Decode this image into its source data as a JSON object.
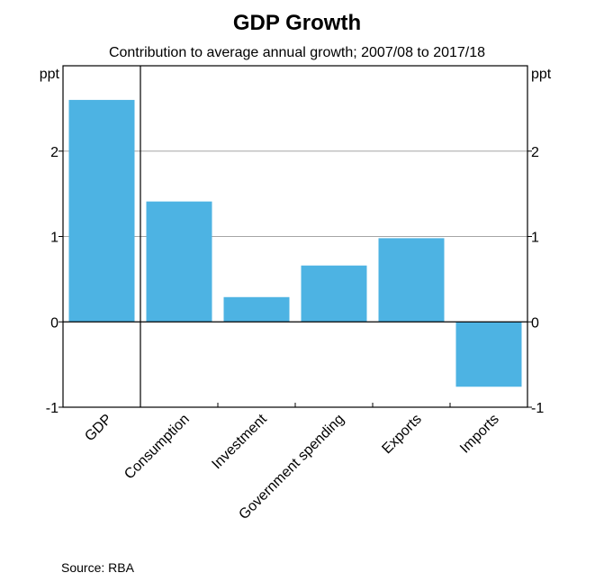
{
  "chart_data": {
    "type": "bar",
    "title": "GDP Growth",
    "subtitle": "Contribution to average annual growth; 2007/08 to 2017/18",
    "xlabel": "",
    "ylabel": "ppt",
    "ylabel_right": "ppt",
    "categories": [
      "GDP",
      "Consumption",
      "Investment",
      "Government spending",
      "Exports",
      "Imports"
    ],
    "values": [
      2.6,
      1.41,
      0.29,
      0.66,
      0.98,
      -0.76
    ],
    "ylim": [
      -1,
      3
    ],
    "yticks": [
      -1,
      0,
      1,
      2
    ],
    "ytick_labels": [
      "-1",
      "0",
      "1",
      "2"
    ],
    "grid": true,
    "divider_after_category": "GDP",
    "bar_color": "#4DB3E3",
    "grid_color": "#A6A6A6",
    "source": "Source:   RBA"
  }
}
